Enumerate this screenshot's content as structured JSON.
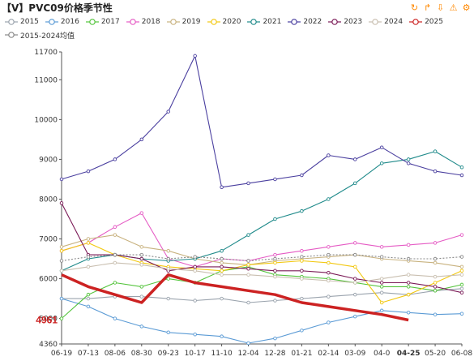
{
  "header": {
    "title": "【V】PVC09价格季节性",
    "tools": [
      "refresh-icon",
      "share-icon",
      "download-icon",
      "warning-icon",
      "settings-icon"
    ]
  },
  "colors": {
    "axis": "#555555",
    "current_value": "#cc2222"
  },
  "chart_data": {
    "type": "line",
    "title": "【V】PVC09价格季节性",
    "ylim": [
      4360,
      11700
    ],
    "y_ticks": [
      4360,
      5000,
      6000,
      7000,
      8000,
      9000,
      10000,
      11000,
      11700
    ],
    "x_ticks": [
      "06-19",
      "07-13",
      "08-06",
      "08-30",
      "09-23",
      "10-17",
      "11-10",
      "12-04",
      "12-28",
      "01-21",
      "02-14",
      "03-09",
      "04-0",
      "04-25",
      "05-20",
      "06-08"
    ],
    "grid": false,
    "legend_position": "top",
    "current_value": 4961,
    "current_value_label": "4961",
    "current_date_label": "04-25",
    "series": [
      {
        "name": "2015",
        "color": "#9aa3ad",
        "values": [
          5500,
          5500,
          5550,
          5550,
          5500,
          5450,
          5500,
          5400,
          5450,
          5500,
          5550,
          5600,
          5650,
          5600,
          5700,
          5750
        ]
      },
      {
        "name": "2016",
        "color": "#5b9bd5",
        "values": [
          5500,
          5300,
          5000,
          4800,
          4650,
          4600,
          4550,
          4380,
          4500,
          4700,
          4900,
          5050,
          5200,
          5150,
          5100,
          5120
        ]
      },
      {
        "name": "2017",
        "color": "#54c43c",
        "values": [
          5000,
          5600,
          5900,
          5800,
          6000,
          5900,
          6200,
          6300,
          6100,
          6050,
          6000,
          5900,
          5800,
          5800,
          5700,
          5850
        ]
      },
      {
        "name": "2018",
        "color": "#e55bc4",
        "values": [
          6700,
          6900,
          7300,
          7650,
          6500,
          6300,
          6500,
          6450,
          6600,
          6700,
          6800,
          6900,
          6800,
          6850,
          6900,
          7100
        ]
      },
      {
        "name": "2019",
        "color": "#c8b27f",
        "values": [
          6800,
          7000,
          7100,
          6800,
          6700,
          6500,
          6400,
          6350,
          6450,
          6500,
          6550,
          6600,
          6500,
          6450,
          6400,
          6300
        ]
      },
      {
        "name": "2020",
        "color": "#f2c811",
        "values": [
          6700,
          6900,
          6600,
          6400,
          6300,
          6250,
          6200,
          6350,
          6400,
          6450,
          6400,
          6300,
          5400,
          5600,
          5900,
          6200
        ]
      },
      {
        "name": "2021",
        "color": "#1f8a8a",
        "values": [
          6200,
          6500,
          6600,
          6500,
          6450,
          6500,
          6700,
          7100,
          7500,
          7700,
          8000,
          8400,
          8900,
          9000,
          9200,
          8800
        ]
      },
      {
        "name": "2022",
        "color": "#4a3f9f",
        "values": [
          8500,
          8700,
          9000,
          9500,
          10200,
          11600,
          8300,
          8400,
          8500,
          8600,
          9100,
          9000,
          9300,
          8900,
          8700,
          8600
        ]
      },
      {
        "name": "2023",
        "color": "#7b1a57",
        "values": [
          7900,
          6600,
          6600,
          6500,
          6200,
          6300,
          6300,
          6250,
          6200,
          6200,
          6150,
          6000,
          5900,
          5900,
          5800,
          5650
        ]
      },
      {
        "name": "2024",
        "color": "#c9bfb0",
        "values": [
          6200,
          6300,
          6400,
          6350,
          6250,
          6200,
          6100,
          6100,
          6050,
          6000,
          5950,
          5900,
          6000,
          6100,
          6050,
          6100
        ]
      },
      {
        "name": "2025",
        "color": "#cc2222",
        "values": [
          6100,
          5800,
          5600,
          5400,
          6100,
          5900,
          5800,
          5700,
          5600,
          5400,
          5300,
          5200,
          5100,
          4961
        ]
      },
      {
        "name": "2015-2024均值",
        "color": "#888888",
        "values": [
          6450,
          6550,
          6600,
          6600,
          6500,
          6550,
          6500,
          6450,
          6500,
          6550,
          6600,
          6600,
          6550,
          6500,
          6500,
          6550
        ]
      }
    ]
  }
}
